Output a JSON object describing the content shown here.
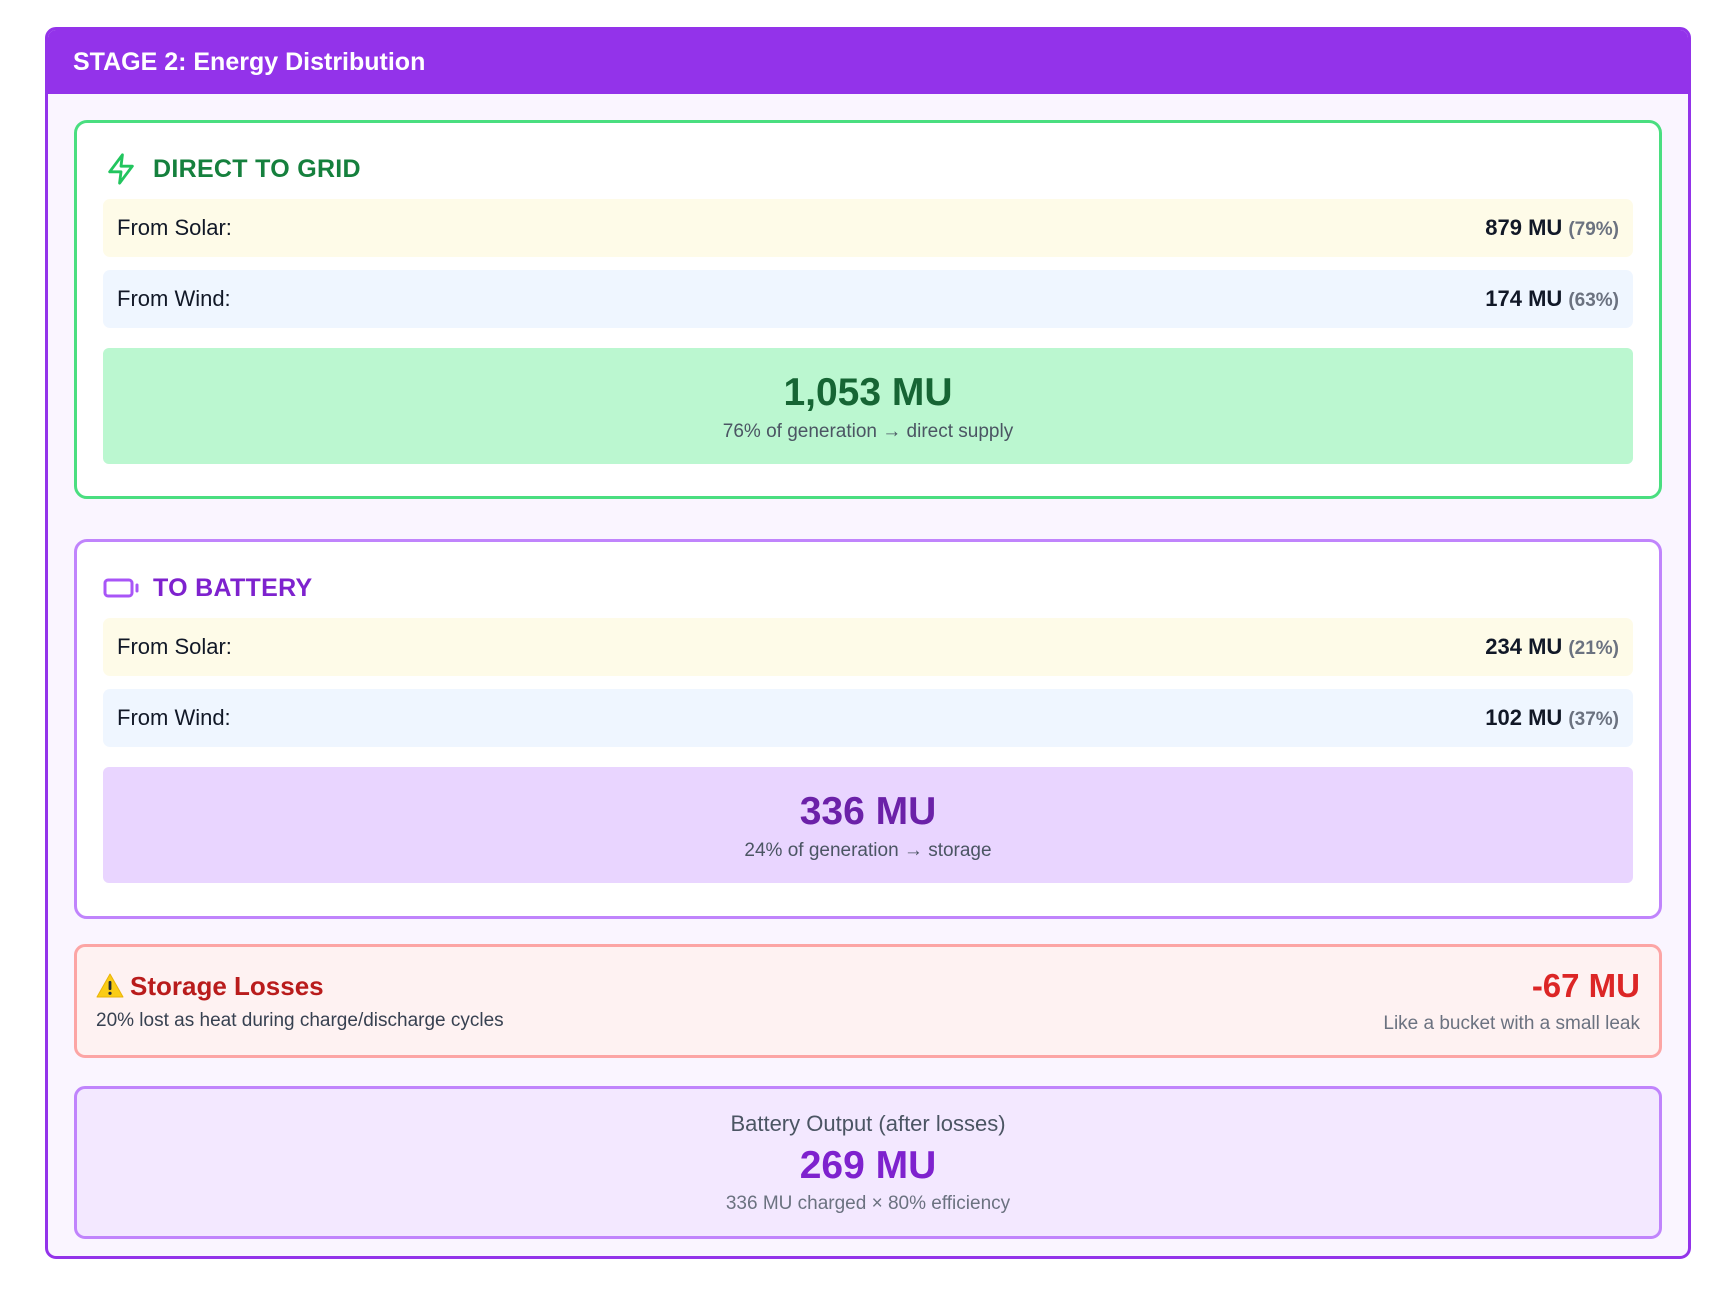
{
  "stage": {
    "title": "STAGE 2: Energy Distribution"
  },
  "grid": {
    "title": "DIRECT TO GRID",
    "icon": "lightning-icon",
    "solar_label": "From Solar:",
    "solar_value": "879 MU",
    "solar_pct": "(79%)",
    "wind_label": "From Wind:",
    "wind_value": "174 MU",
    "wind_pct": "(63%)",
    "total": "1,053 MU",
    "total_note": "76% of generation → direct supply"
  },
  "battery": {
    "title": "TO BATTERY",
    "icon": "battery-icon",
    "solar_label": "From Solar:",
    "solar_value": "234 MU",
    "solar_pct": "(21%)",
    "wind_label": "From Wind:",
    "wind_value": "102 MU",
    "wind_pct": "(37%)",
    "total": "336 MU",
    "total_note": "24% of generation → storage"
  },
  "losses": {
    "icon": "warning-icon",
    "title": "Storage Losses",
    "desc": "20% lost as heat during charge/discharge cycles",
    "amount": "-67 MU",
    "note": "Like a bucket with a small leak"
  },
  "output": {
    "label": "Battery Output (after losses)",
    "value": "269 MU",
    "note": "336 MU charged × 80% efficiency"
  },
  "colors": {
    "stage": "#9333ea",
    "grid_accent": "#4ade80",
    "battery_accent": "#c084fc",
    "loss_red": "#dc2626"
  }
}
